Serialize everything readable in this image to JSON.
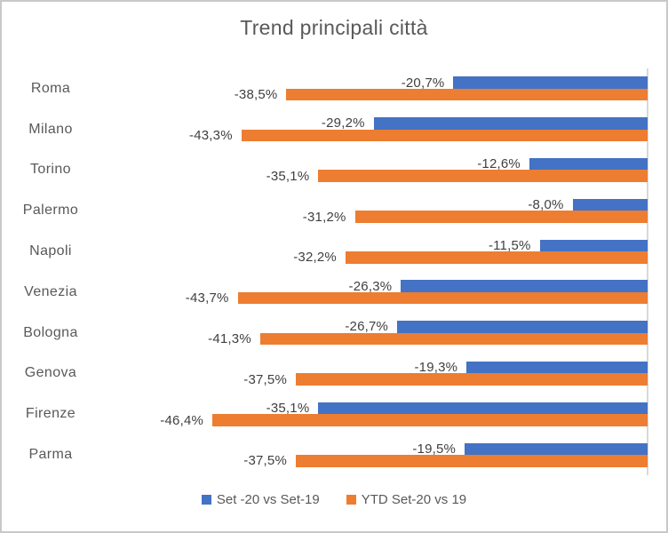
{
  "window": {
    "background_color": "#ffffff",
    "border_color": "#c8c8c8"
  },
  "chart_data": {
    "type": "bar",
    "orientation": "horizontal",
    "title": "Trend principali città",
    "title_color": "#595959",
    "categories": [
      "Roma",
      "Milano",
      "Torino",
      "Palermo",
      "Napoli",
      "Venezia",
      "Bologna",
      "Genova",
      "Firenze",
      "Parma"
    ],
    "series": [
      {
        "name": "Set -20 vs Set-19",
        "color": "#4472C4",
        "values": [
          -20.7,
          -29.2,
          -12.6,
          -8.0,
          -11.5,
          -26.3,
          -26.7,
          -19.3,
          -35.1,
          -19.5
        ],
        "labels": [
          "-20,7%",
          "-29,2%",
          "-12,6%",
          "-8,0%",
          "-11,5%",
          "-26,3%",
          "-26,7%",
          "-19,3%",
          "-35,1%",
          "-19,5%"
        ]
      },
      {
        "name": "YTD Set-20 vs 19",
        "color": "#ED7D31",
        "values": [
          -38.5,
          -43.3,
          -35.1,
          -31.2,
          -32.2,
          -43.7,
          -41.3,
          -37.5,
          -46.4,
          -37.5
        ],
        "labels": [
          "-38,5%",
          "-43,3%",
          "-35,1%",
          "-31,2%",
          "-32,2%",
          "-43,7%",
          "-41,3%",
          "-37,5%",
          "-46,4%",
          "-37,5%"
        ]
      }
    ],
    "xlim": [
      -50,
      0
    ],
    "value_axis_labels_hidden": true,
    "zero_axis_position": "right",
    "axis_line_color": "#d9d9d9",
    "grid": false,
    "legend_position": "bottom",
    "category_label_color": "#595959",
    "data_label_color": "#404040",
    "data_labels_shown": true
  }
}
